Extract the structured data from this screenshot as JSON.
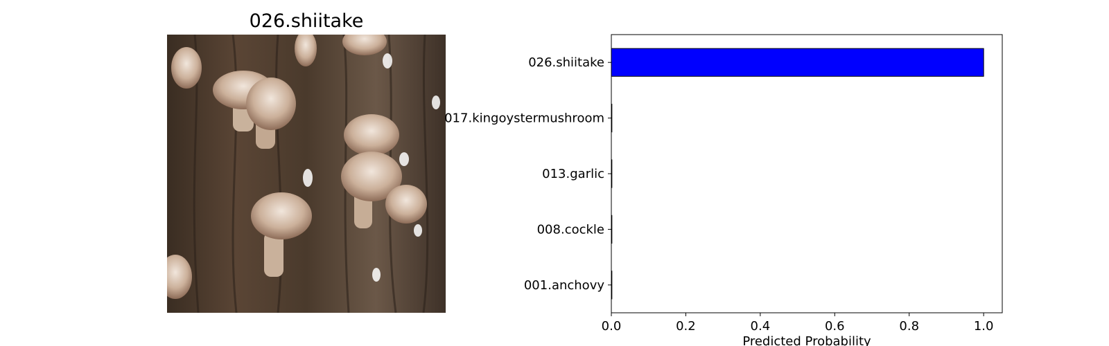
{
  "image_panel": {
    "title": "026.shiitake",
    "photo_icon": "shiitake-mushrooms-on-tree-trunk-photo"
  },
  "chart_data": {
    "type": "bar",
    "orientation": "horizontal",
    "categories": [
      "026.shiitake",
      "017.kingoystermushroom",
      "013.garlic",
      "008.cockle",
      "001.anchovy"
    ],
    "values": [
      1.0,
      0.0,
      0.0,
      0.0,
      0.0
    ],
    "title": "",
    "xlabel": "Predicted Probability",
    "ylabel": "",
    "xlim": [
      0,
      1.05
    ],
    "xticks": [
      "0.0",
      "0.2",
      "0.4",
      "0.6",
      "0.8",
      "1.0"
    ],
    "grid": false,
    "legend": "none",
    "bar_color": "#0000ff",
    "bar_edge_color": "#000000"
  }
}
